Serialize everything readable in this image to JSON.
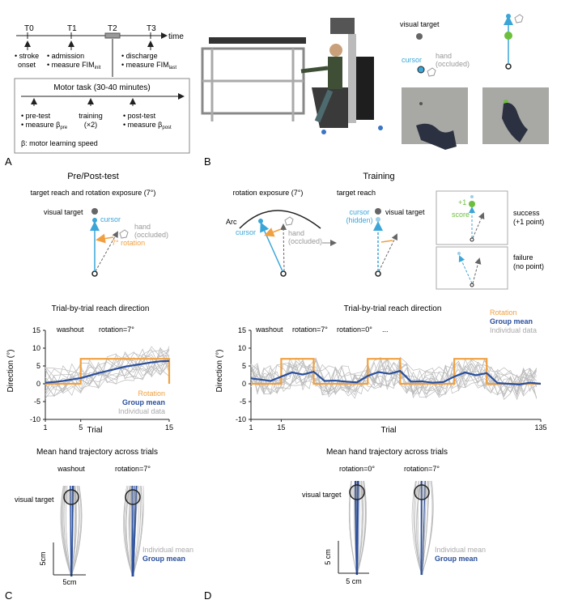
{
  "panel_labels": {
    "A": "A",
    "B": "B",
    "C": "C",
    "D": "D"
  },
  "timeline": {
    "ticks": [
      "T0",
      "T1",
      "T2",
      "T3"
    ],
    "time_label": "time",
    "notes": [
      {
        "l1": "• stroke",
        "l2": "onset",
        "sub": ""
      },
      {
        "l1": "• admission",
        "l2": "• measure FIM",
        "sub": "init"
      },
      {
        "l1": "• discharge",
        "l2": "• measure FIM",
        "sub": "last"
      }
    ],
    "box_title": "Motor task (30-40 minutes)",
    "box_notes": [
      {
        "l1": "• pre-test",
        "l2": "• measure β",
        "sub": "pre"
      },
      {
        "l1": "training",
        "l2": "(×2)",
        "sub": ""
      },
      {
        "l1": "• post-test",
        "l2": "• measure β",
        "sub": "post"
      }
    ],
    "box_footer": "β: motor learning speed"
  },
  "panel_b": {
    "visual_target": "visual target",
    "cursor": "cursor",
    "hand_l1": "hand",
    "hand_l2": "(occluded)"
  },
  "pre_post": {
    "title": "Pre/Post-test",
    "subtitle": "target reach and rotation exposure (7°)",
    "visual_target": "visual target",
    "cursor": "cursor",
    "hand_l1": "hand",
    "hand_l2": "(occluded)",
    "rotation": "7° rotation"
  },
  "training": {
    "title": "Training",
    "exposure_title": "rotation exposure (7°)",
    "arc": "Arc",
    "cursor": "cursor",
    "hand_l1": "hand",
    "hand_l2": "(occluded)",
    "reach_title": "target reach",
    "cursor_hidden_l1": "cursor",
    "cursor_hidden_l2": "(hidden)",
    "visual_target": "visual target",
    "score_plus": "+1",
    "score": "score",
    "success_l1": "success",
    "success_l2": "(+1 point)",
    "failure_l1": "failure",
    "failure_l2": "(no point)"
  },
  "chart_data": [
    {
      "type": "line",
      "title": "Trial-by-trial reach direction",
      "xlabel": "Trial",
      "ylabel": "Direction (°)",
      "xlim": [
        1,
        15
      ],
      "ylim": [
        -10,
        15
      ],
      "xticks": [
        1,
        5,
        15
      ],
      "yticks": [
        -10,
        -5,
        0,
        5,
        10,
        15
      ],
      "annotations": [
        "washout",
        "rotation=7°"
      ],
      "legend": [
        "Rotation",
        "Group mean",
        "Individual data"
      ],
      "series": [
        {
          "name": "Rotation",
          "color": "#f0a040",
          "x": [
            1,
            5,
            5,
            15,
            15
          ],
          "y": [
            0,
            0,
            7,
            7,
            0
          ]
        },
        {
          "name": "Group mean",
          "color": "#2a4f9c",
          "x": [
            1,
            2,
            3,
            4,
            5,
            6,
            7,
            8,
            9,
            10,
            11,
            12,
            13,
            14,
            15
          ],
          "y": [
            0.3,
            0.5,
            0.8,
            1.2,
            1.6,
            2.3,
            3.0,
            3.6,
            4.2,
            4.8,
            5.2,
            5.6,
            6.0,
            6.3,
            6.4
          ]
        }
      ]
    },
    {
      "type": "line",
      "title": "Trial-by-trial reach direction",
      "xlabel": "Trial",
      "ylabel": "Direction (°)",
      "xlim": [
        1,
        135
      ],
      "ylim": [
        -10,
        15
      ],
      "xticks": [
        1,
        15,
        135
      ],
      "yticks": [
        -10,
        -5,
        0,
        5,
        10,
        15
      ],
      "annotations": [
        "washout",
        "rotation=7°",
        "rotation=0°",
        "..."
      ],
      "legend": [
        "Rotation",
        "Group mean",
        "Individual data"
      ],
      "series": [
        {
          "name": "Rotation",
          "color": "#f0a040",
          "x": [
            1,
            15,
            15,
            30,
            30,
            55,
            55,
            70,
            70,
            95,
            95,
            110,
            110,
            135
          ],
          "y": [
            0,
            0,
            7,
            7,
            0,
            0,
            7,
            7,
            0,
            0,
            7,
            7,
            0,
            0
          ]
        },
        {
          "name": "Group mean",
          "color": "#2a4f9c",
          "x": [
            1,
            5,
            10,
            15,
            20,
            25,
            30,
            35,
            40,
            45,
            50,
            55,
            60,
            65,
            70,
            75,
            80,
            85,
            90,
            95,
            100,
            105,
            110,
            115,
            120,
            125,
            130,
            135
          ],
          "y": [
            1.5,
            1.2,
            0.8,
            2.0,
            3.2,
            2.6,
            3.4,
            0.8,
            0.9,
            0.6,
            0.4,
            2.2,
            3.3,
            2.8,
            3.6,
            0.6,
            0.7,
            0.3,
            0.5,
            2.0,
            3.2,
            2.4,
            3.0,
            0.2,
            0.0,
            -0.2,
            0.3,
            0.0
          ]
        }
      ]
    }
  ],
  "trajectories": {
    "title": "Mean hand trajectory across trials",
    "c_left": "washout",
    "c_right": "rotation=7°",
    "d_left": "rotation=0°",
    "d_right": "rotation=7°",
    "visual_target": "visual target",
    "scale": "5cm",
    "scale_d": "5 cm",
    "individual": "Individual mean",
    "group": "Group mean"
  },
  "colors": {
    "cursor": "#3aa6d8",
    "rotation": "#f0a040",
    "group": "#2a4f9c",
    "individual": "#aaaaaa",
    "score": "#6cbf3c"
  }
}
